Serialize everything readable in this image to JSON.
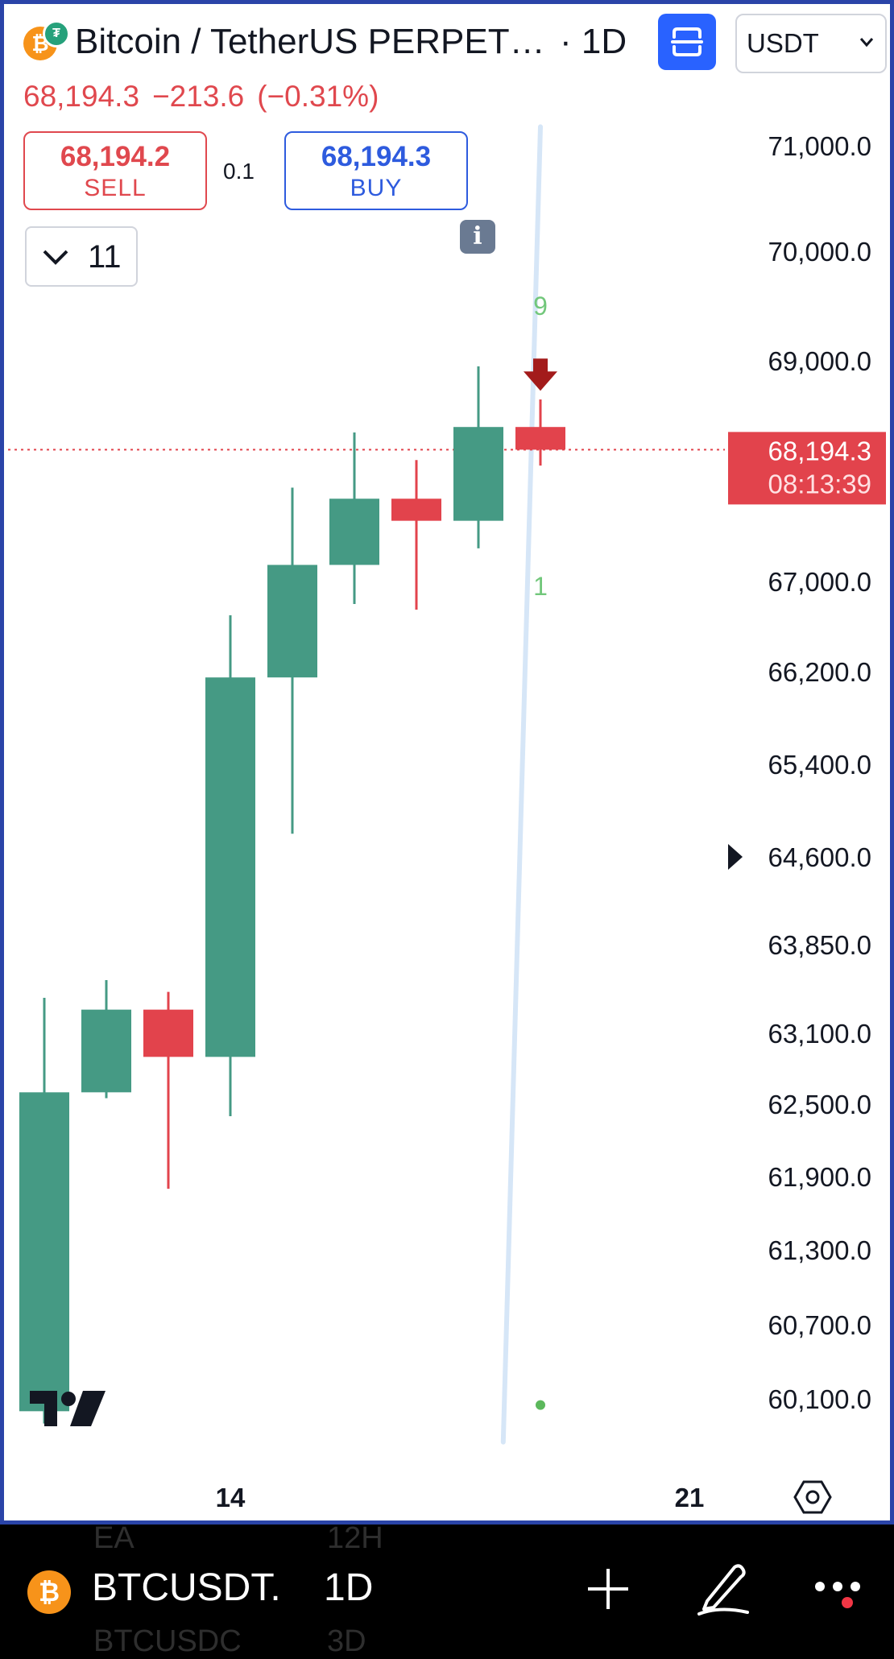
{
  "header": {
    "title": "Bitcoin / TetherUS PERPETUAL CONTRACT",
    "interval": "· 1D",
    "currency": "USDT"
  },
  "quote": {
    "last": "68,194.3",
    "change": "−213.6",
    "change_pct": "(−0.31%)"
  },
  "trade": {
    "sell_price": "68,194.2",
    "sell_label": "SELL",
    "spread": "0.1",
    "buy_price": "68,194.3",
    "buy_label": "BUY"
  },
  "indicators_toggle": {
    "count": "11"
  },
  "info_icon": {
    "glyph": "i"
  },
  "colors": {
    "up": "#459a84",
    "down": "#e2434c",
    "price_label_bg": "#e2434c",
    "trendline": "#d6e6f7",
    "marker_text": "#72c77b",
    "arrow": "#a31b1b"
  },
  "chart_data": {
    "type": "candlestick",
    "x_tick_labels": [
      {
        "label": "14",
        "index": 3
      },
      {
        "label": "21",
        "index": 10
      }
    ],
    "y_tick_labels": [
      "71,000.0",
      "70,000.0",
      "69,000.0",
      "67,000.0",
      "66,200.0",
      "65,400.0",
      "64,600.0",
      "63,850.0",
      "63,100.0",
      "62,500.0",
      "61,900.0",
      "61,300.0",
      "60,700.0",
      "60,100.0"
    ],
    "y_tick_values": [
      71000,
      70000,
      69000,
      67000,
      66200,
      65400,
      64600,
      63850,
      63100,
      62500,
      61900,
      61300,
      60700,
      60100
    ],
    "candles": [
      {
        "open": 60000,
        "high": 63400,
        "low": 59900,
        "close": 62600
      },
      {
        "open": 62600,
        "high": 63550,
        "low": 62550,
        "close": 63300
      },
      {
        "open": 63300,
        "high": 63450,
        "low": 61800,
        "close": 62900
      },
      {
        "open": 62900,
        "high": 66700,
        "low": 62400,
        "close": 66150
      },
      {
        "open": 66150,
        "high": 67850,
        "low": 64800,
        "close": 67150
      },
      {
        "open": 67150,
        "high": 68350,
        "low": 66800,
        "close": 67750
      },
      {
        "open": 67750,
        "high": 68100,
        "low": 66750,
        "close": 67550
      },
      {
        "open": 67550,
        "high": 68950,
        "low": 67300,
        "close": 68400
      },
      {
        "open": 68400,
        "high": 68650,
        "low": 68050,
        "close": 68194.3
      }
    ],
    "current_price": {
      "value": 68194.3,
      "label": "68,194.3",
      "countdown": "08:13:39"
    },
    "annotations": [
      {
        "text": "9",
        "index": 8,
        "price": 69420
      },
      {
        "text": "1",
        "index": 8,
        "price": 66880
      }
    ],
    "sell_arrow": {
      "index": 8,
      "price": 69020
    },
    "trendline": [
      {
        "index": 8,
        "price": 71180
      },
      {
        "index": 7.4,
        "price": 59750
      }
    ],
    "dot": {
      "index": 8,
      "price": 60050
    },
    "cursor_marker_price": 64600
  },
  "bottom_bar": {
    "symbol": "BTCUSDT.",
    "interval": "1D",
    "ghost_rows": [
      {
        "left": "EA",
        "right": "12H"
      },
      {
        "left": "BTCUSDC",
        "right": "3D"
      }
    ]
  }
}
